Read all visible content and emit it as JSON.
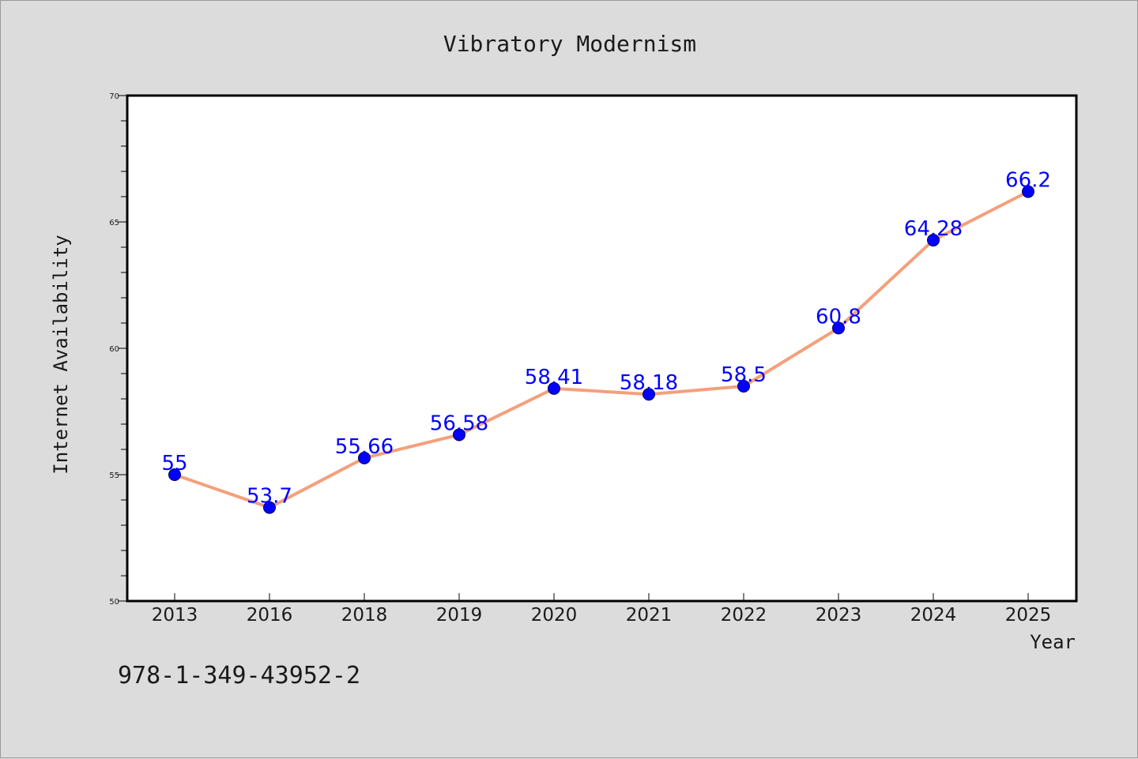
{
  "chart_data": {
    "type": "line",
    "title": "Vibratory Modernism",
    "xlabel": "Year",
    "ylabel": "Internet Availability",
    "categories": [
      "2013",
      "2016",
      "2018",
      "2019",
      "2020",
      "2021",
      "2022",
      "2023",
      "2024",
      "2025"
    ],
    "series": [
      {
        "values": [
          55,
          53.7,
          55.66,
          56.58,
          58.41,
          58.18,
          58.5,
          60.8,
          64.28,
          66.2
        ],
        "data_labels": [
          "55",
          "53.7",
          "55.66",
          "56.58",
          "58.41",
          "58.18",
          "58.5",
          "60.8",
          "64.28",
          "66.2"
        ],
        "line_color": "#f4a07c",
        "marker_color": "#0000ff"
      }
    ],
    "ylim": [
      50,
      70
    ],
    "yticks": [
      "50",
      "55",
      "60",
      "65",
      "70"
    ],
    "grid": false,
    "legend": "none"
  },
  "annotation": {
    "isbn": "978-1-349-43952-2"
  },
  "colors": {
    "background": "#dcdcdc",
    "plot_background": "#ffffff",
    "text": "#1a1a1a"
  }
}
